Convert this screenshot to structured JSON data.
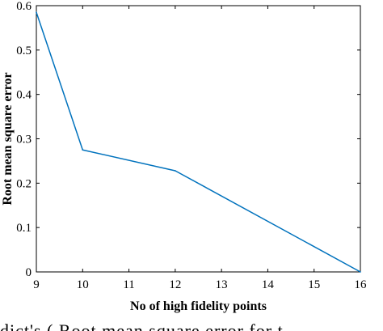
{
  "chart_data": {
    "type": "line",
    "title": "",
    "xlabel": "No of high fidelity points",
    "ylabel": "Root mean square error",
    "x": [
      9,
      10,
      12,
      16
    ],
    "series": [
      {
        "values": [
          0.585,
          0.275,
          0.228,
          0.0
        ],
        "color": "#0072BD"
      }
    ],
    "xlim": [
      9,
      16
    ],
    "ylim": [
      0,
      0.6
    ],
    "xticks": [
      9,
      10,
      11,
      12,
      13,
      14,
      15,
      16
    ],
    "yticks": [
      0,
      0.1,
      0.2,
      0.3,
      0.4,
      0.5,
      0.6
    ],
    "xtick_labels": [
      "9",
      "10",
      "11",
      "12",
      "13",
      "14",
      "15",
      "16"
    ],
    "ytick_labels": [
      "0",
      "0.1",
      "0.2",
      "0.3",
      "0.4",
      "0.5",
      "0.6"
    ],
    "grid": false,
    "legend": "none",
    "box": true
  },
  "caption": {
    "text": "dict's          ( Root mean square error for t"
  }
}
